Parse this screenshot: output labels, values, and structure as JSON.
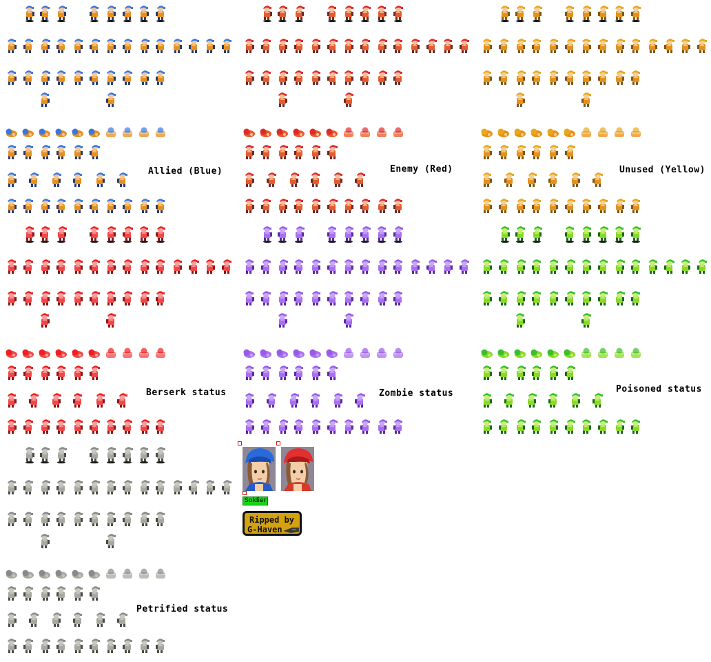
{
  "labels": {
    "allied": "Allied (Blue)",
    "enemy": "Enemy (Red)",
    "unused": "Unused (Yellow)",
    "berserk": "Berserk status",
    "zombie": "Zombie status",
    "poisoned": "Poisoned status",
    "petrified": "Petrified status"
  },
  "portrait_tag": "Soldier",
  "credit": {
    "line1": "Ripped by",
    "line2": "G-Haven"
  },
  "palettes": {
    "allied_blue": {
      "hair": "#3a78e0",
      "body": "#e8901e",
      "skin": "#f0c8a0",
      "dark": "#2a3a6a"
    },
    "enemy_red": {
      "hair": "#e02a2a",
      "body": "#e85a2a",
      "skin": "#f0c0a0",
      "dark": "#6a2a2a"
    },
    "unused_yellow": {
      "hair": "#e8a818",
      "body": "#e89018",
      "skin": "#f0d0a0",
      "dark": "#7a5a18"
    },
    "berserk": {
      "hair": "#ee2020",
      "body": "#f04848",
      "skin": "#f8a0a0",
      "dark": "#8a1818"
    },
    "zombie": {
      "hair": "#9a5ae8",
      "body": "#a870f0",
      "skin": "#c8a8f8",
      "dark": "#5a2a9a"
    },
    "poisoned": {
      "hair": "#38c028",
      "body": "#8ad828",
      "skin": "#c8f078",
      "dark": "#1a6a18"
    },
    "petrified": {
      "hair": "#8a8a8a",
      "body": "#a8a8a0",
      "skin": "#c8c8c0",
      "dark": "#4a4a4a"
    }
  },
  "icons": [
    "sprite-figure",
    "portrait-blue-soldier",
    "portrait-red-soldier",
    "gunblade-icon"
  ]
}
